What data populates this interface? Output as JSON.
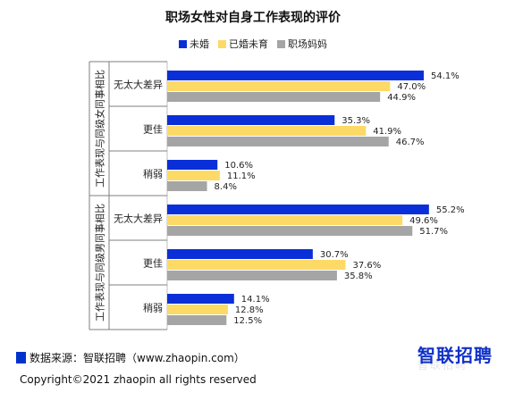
{
  "chart_data": {
    "type": "bar",
    "orientation": "horizontal",
    "title": "职场女性对自身工作表现的评价",
    "legend_position": "top",
    "xlim": [
      0,
      60
    ],
    "series": [
      {
        "name": "未婚",
        "color": "#0a2fd8"
      },
      {
        "name": "已婚未育",
        "color": "#fdd966"
      },
      {
        "name": "职场妈妈",
        "color": "#a5a5a5"
      }
    ],
    "groups": [
      {
        "label": "工作表现与同级女同事相比",
        "categories": [
          {
            "label": "无太大差异",
            "values": [
              54.1,
              47.0,
              44.9
            ],
            "value_labels": [
              "54.1%",
              "47.0%",
              "44.9%"
            ]
          },
          {
            "label": "更佳",
            "values": [
              35.3,
              41.9,
              46.7
            ],
            "value_labels": [
              "35.3%",
              "41.9%",
              "46.7%"
            ]
          },
          {
            "label": "稍弱",
            "values": [
              10.6,
              11.1,
              8.4
            ],
            "value_labels": [
              "10.6%",
              "11.1%",
              "8.4%"
            ]
          }
        ]
      },
      {
        "label": "工作表现与同级男同事相比",
        "categories": [
          {
            "label": "无太大差异",
            "values": [
              55.2,
              49.6,
              51.7
            ],
            "value_labels": [
              "55.2%",
              "49.6%",
              "51.7%"
            ]
          },
          {
            "label": "更佳",
            "values": [
              30.7,
              37.6,
              35.8
            ],
            "value_labels": [
              "30.7%",
              "37.6%",
              "35.8%"
            ]
          },
          {
            "label": "稍弱",
            "values": [
              14.1,
              12.8,
              12.5
            ],
            "value_labels": [
              "14.1%",
              "12.8%",
              "12.5%"
            ]
          }
        ]
      }
    ]
  },
  "footer": {
    "source": "数据来源：智联招聘（www.zhaopin.com）",
    "copyright": "Copyright©2021 zhaopin all rights reserved"
  },
  "logo": {
    "text": "智联招聘",
    "watermark": "智联招聘"
  }
}
